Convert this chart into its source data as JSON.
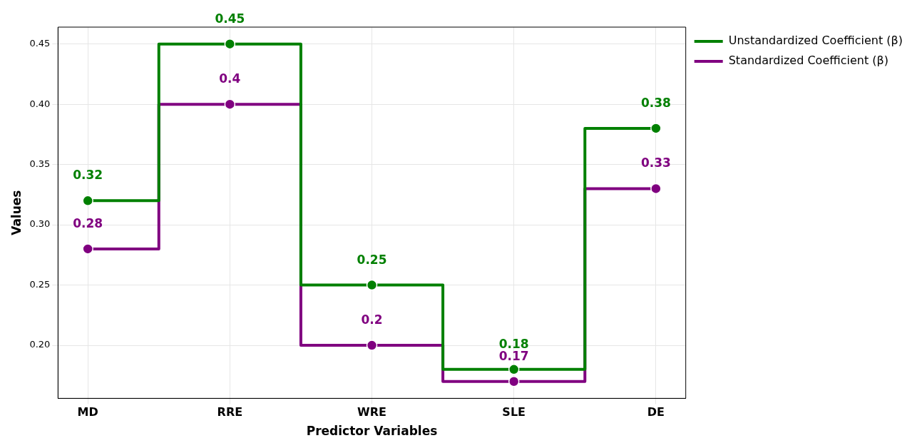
{
  "chart_data": {
    "type": "step",
    "xlabel": "Predictor Variables",
    "ylabel": "Values",
    "categories": [
      "MD",
      "RRE",
      "WRE",
      "SLE",
      "DE"
    ],
    "series": [
      {
        "name": "Unstandardized Coefficient (β)",
        "color": "#008000",
        "values": [
          0.32,
          0.45,
          0.25,
          0.18,
          0.38
        ]
      },
      {
        "name": "Standardized Coefficient (β)",
        "color": "#800080",
        "values": [
          0.28,
          0.4,
          0.2,
          0.17,
          0.33
        ]
      }
    ],
    "ylim": [
      0.156,
      0.464
    ],
    "yticks": [
      {
        "value": 0.2,
        "label": "0.20"
      },
      0.25,
      {
        "value": 0.3,
        "label": "0.30"
      },
      0.35,
      {
        "value": 0.4,
        "label": "0.40"
      },
      0.45
    ],
    "grid": true,
    "legend": "top right",
    "marker": "circle",
    "line_style": "solid",
    "data_labels": true
  }
}
